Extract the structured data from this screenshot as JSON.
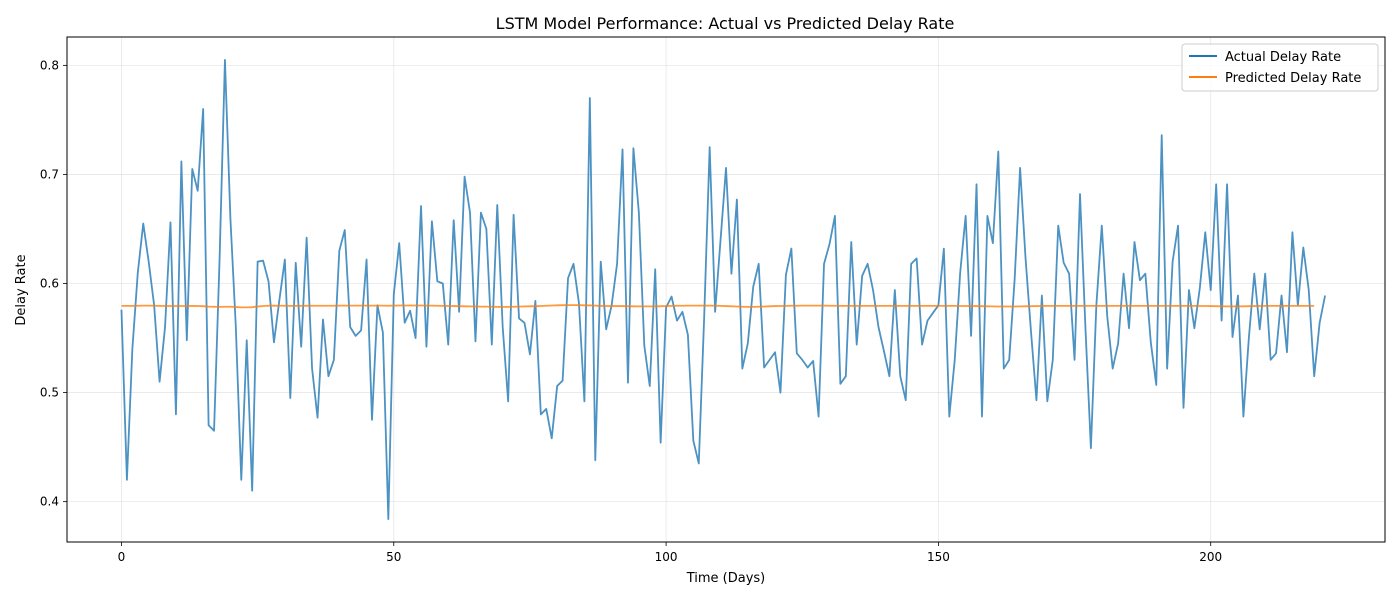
{
  "chart_data": {
    "type": "line",
    "title": "LSTM Model Performance: Actual vs Predicted Delay Rate",
    "xlabel": "Time (Days)",
    "ylabel": "Delay Rate",
    "xlim": [
      -10,
      232
    ],
    "ylim": [
      0.363,
      0.826
    ],
    "x_ticks": [
      0,
      50,
      100,
      150,
      200
    ],
    "y_ticks": [
      0.4,
      0.5,
      0.6,
      0.7,
      0.8
    ],
    "grid": true,
    "legend_position": "top-right",
    "series": [
      {
        "name": "Actual Delay Rate",
        "color": "#1f77b4",
        "values": [
          0.576,
          0.42,
          0.54,
          0.61,
          0.655,
          0.62,
          0.58,
          0.51,
          0.56,
          0.656,
          0.48,
          0.712,
          0.548,
          0.705,
          0.685,
          0.76,
          0.47,
          0.465,
          0.62,
          0.805,
          0.66,
          0.56,
          0.42,
          0.548,
          0.41,
          0.62,
          0.621,
          0.602,
          0.546,
          0.585,
          0.622,
          0.495,
          0.619,
          0.542,
          0.642,
          0.522,
          0.477,
          0.567,
          0.515,
          0.53,
          0.63,
          0.649,
          0.56,
          0.552,
          0.557,
          0.622,
          0.475,
          0.58,
          0.555,
          0.384,
          0.59,
          0.637,
          0.564,
          0.575,
          0.55,
          0.671,
          0.542,
          0.657,
          0.602,
          0.6,
          0.544,
          0.658,
          0.574,
          0.698,
          0.665,
          0.547,
          0.665,
          0.65,
          0.544,
          0.672,
          0.56,
          0.492,
          0.663,
          0.568,
          0.564,
          0.535,
          0.584,
          0.48,
          0.485,
          0.458,
          0.506,
          0.511,
          0.605,
          0.618,
          0.582,
          0.492,
          0.77,
          0.438,
          0.62,
          0.558,
          0.58,
          0.618,
          0.723,
          0.509,
          0.724,
          0.665,
          0.543,
          0.506,
          0.613,
          0.454,
          0.578,
          0.588,
          0.566,
          0.574,
          0.553,
          0.456,
          0.435,
          0.57,
          0.725,
          0.574,
          0.64,
          0.706,
          0.609,
          0.677,
          0.522,
          0.545,
          0.597,
          0.618,
          0.523,
          0.53,
          0.537,
          0.5,
          0.608,
          0.632,
          0.536,
          0.53,
          0.523,
          0.529,
          0.478,
          0.618,
          0.636,
          0.662,
          0.508,
          0.515,
          0.638,
          0.544,
          0.607,
          0.618,
          0.594,
          0.56,
          0.538,
          0.515,
          0.594,
          0.515,
          0.493,
          0.618,
          0.623,
          0.544,
          0.566,
          0.573,
          0.58,
          0.632,
          0.478,
          0.53,
          0.61,
          0.662,
          0.552,
          0.691,
          0.478,
          0.662,
          0.637,
          0.721,
          0.522,
          0.53,
          0.604,
          0.706,
          0.623,
          0.556,
          0.493,
          0.589,
          0.492,
          0.53,
          0.653,
          0.619,
          0.609,
          0.53,
          0.682,
          0.559,
          0.449,
          0.58,
          0.653,
          0.57,
          0.522,
          0.545,
          0.609,
          0.559,
          0.638,
          0.603,
          0.609,
          0.546,
          0.507,
          0.736,
          0.522,
          0.62,
          0.653,
          0.486,
          0.594,
          0.559,
          0.596,
          0.647,
          0.594,
          0.691,
          0.566,
          0.691,
          0.551,
          0.589,
          0.478,
          0.55,
          0.609,
          0.558,
          0.609,
          0.53,
          0.536,
          0.589,
          0.537,
          0.647,
          0.58,
          0.633,
          0.594,
          0.515,
          0.564,
          0.589
        ]
      },
      {
        "name": "Predicted Delay Rate",
        "color": "#ff7f0e",
        "values": [
          0.5795,
          0.5795,
          0.5795,
          0.5796,
          0.5797,
          0.5797,
          0.5796,
          0.5795,
          0.5794,
          0.5794,
          0.5794,
          0.5794,
          0.5794,
          0.5795,
          0.5794,
          0.5792,
          0.5788,
          0.5787,
          0.5786,
          0.5787,
          0.5787,
          0.5784,
          0.5781,
          0.5781,
          0.5783,
          0.5789,
          0.5794,
          0.5796,
          0.5797,
          0.5796,
          0.5796,
          0.5795,
          0.5795,
          0.5795,
          0.5796,
          0.5796,
          0.5796,
          0.5796,
          0.5796,
          0.5796,
          0.5797,
          0.5797,
          0.5797,
          0.5797,
          0.5797,
          0.5797,
          0.5797,
          0.5797,
          0.5797,
          0.5796,
          0.5797,
          0.5798,
          0.5798,
          0.5798,
          0.5798,
          0.5798,
          0.5797,
          0.5797,
          0.5796,
          0.5795,
          0.5794,
          0.5793,
          0.5792,
          0.5791,
          0.579,
          0.5789,
          0.5788,
          0.5788,
          0.5787,
          0.5786,
          0.5786,
          0.5786,
          0.5787,
          0.5788,
          0.579,
          0.5791,
          0.5792,
          0.5794,
          0.5796,
          0.5798,
          0.58,
          0.5801,
          0.5802,
          0.5802,
          0.5801,
          0.58,
          0.5799,
          0.5797,
          0.5795,
          0.5794,
          0.5793,
          0.5793,
          0.5793,
          0.5792,
          0.5791,
          0.579,
          0.579,
          0.579,
          0.579,
          0.5792,
          0.5794,
          0.5795,
          0.5796,
          0.5796,
          0.5797,
          0.5797,
          0.5797,
          0.5797,
          0.5797,
          0.5796,
          0.5795,
          0.5793,
          0.5791,
          0.5789,
          0.5787,
          0.5786,
          0.5786,
          0.5787,
          0.5789,
          0.5791,
          0.5793,
          0.5794,
          0.5795,
          0.5796,
          0.5796,
          0.5797,
          0.5797,
          0.5797,
          0.5797,
          0.5797,
          0.5796,
          0.5796,
          0.5795,
          0.5795,
          0.5795,
          0.5795,
          0.5795,
          0.5795,
          0.5795,
          0.5795,
          0.5795,
          0.5795,
          0.5795,
          0.5795,
          0.5795,
          0.5795,
          0.5795,
          0.5795,
          0.5795,
          0.5795,
          0.5795,
          0.5795,
          0.5795,
          0.5795,
          0.5794,
          0.5794,
          0.5793,
          0.5793,
          0.5792,
          0.5791,
          0.579,
          0.5789,
          0.5789,
          0.5789,
          0.5789,
          0.579,
          0.5791,
          0.5792,
          0.5793,
          0.5794,
          0.5795,
          0.5795,
          0.5795,
          0.5795,
          0.5795,
          0.5795,
          0.5795,
          0.5795,
          0.5795,
          0.5795,
          0.5795,
          0.5795,
          0.5795,
          0.5795,
          0.5795,
          0.5795,
          0.5795,
          0.5795,
          0.5795,
          0.5795,
          0.5795,
          0.5795,
          0.5795,
          0.5795,
          0.5795,
          0.5795,
          0.5795,
          0.5795,
          0.5794,
          0.5794,
          0.5793,
          0.5792,
          0.5791,
          0.579,
          0.579,
          0.579,
          0.5791,
          0.5792,
          0.5793,
          0.5794,
          0.5795,
          0.5795,
          0.5795,
          0.5795,
          0.5795,
          0.5795,
          0.5795,
          0.5795,
          0.5795,
          0.5795
        ]
      }
    ]
  }
}
